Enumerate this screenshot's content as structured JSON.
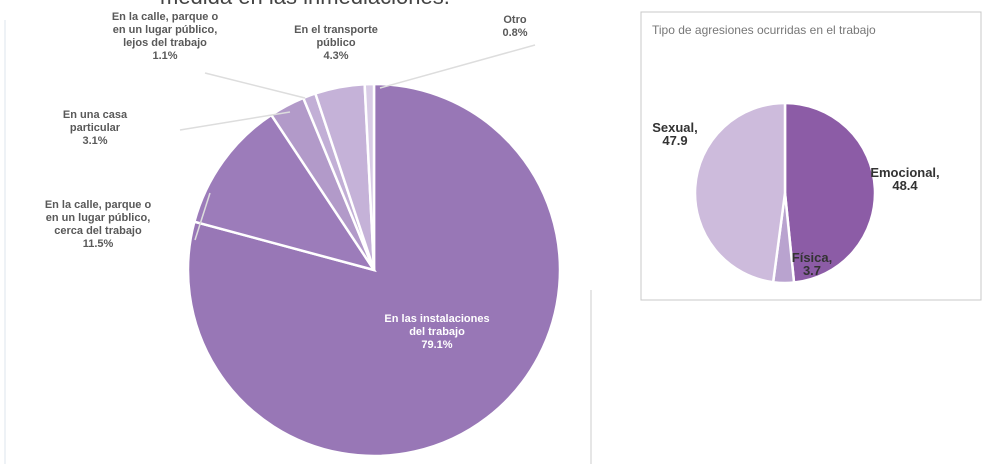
{
  "header_text": "medida en las inmediaciones.",
  "chart_data": [
    {
      "type": "pie",
      "categories": [
        "En las instalaciones del trabajo",
        "En la calle, parque o en un lugar público, cerca del trabajo",
        "En una casa particular",
        "En la calle, parque o en un lugar público, lejos del trabajo",
        "En el transporte público",
        "Otro"
      ],
      "values": [
        79.1,
        11.5,
        3.1,
        1.1,
        4.3,
        0.8
      ],
      "value_labels": [
        "79.1%",
        "11.5%",
        "3.1%",
        "1.1%",
        "4.3%",
        "0.8%"
      ],
      "colors": [
        "#9877b6",
        "#9c7cba",
        "#b29ac9",
        "#c2afd6",
        "#c5b2d8",
        "#d9cce6"
      ]
    },
    {
      "type": "pie",
      "title": "Tipo de agresiones ocurridas en el trabajo",
      "categories": [
        "Emocional,",
        "Física,",
        "Sexual,"
      ],
      "values": [
        48.4,
        3.7,
        47.9
      ],
      "colors": [
        "#8c5ca6",
        "#b9a3cf",
        "#cdbbdc"
      ]
    }
  ]
}
